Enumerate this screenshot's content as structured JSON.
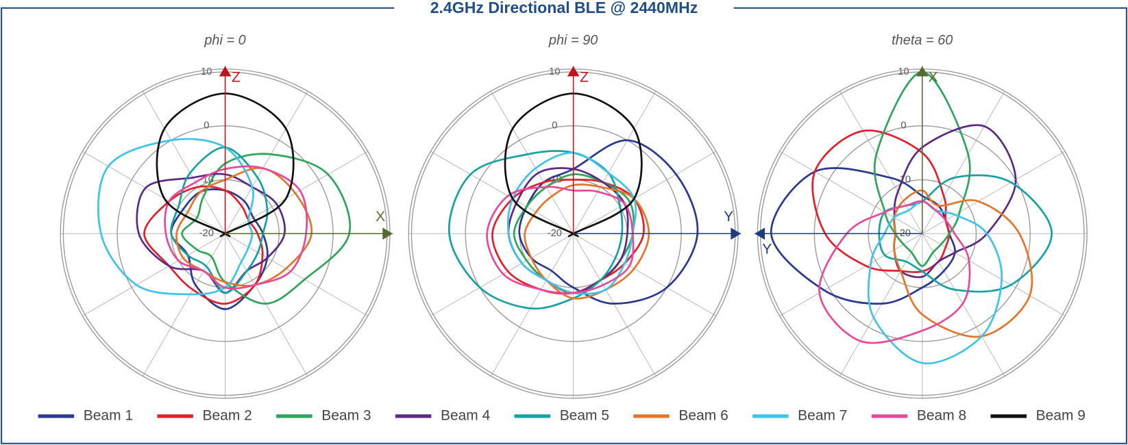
{
  "title": "2.4GHz Directional BLE @ 2440MHz",
  "chart_data": [
    {
      "type": "polar",
      "subtitle": "phi = 0",
      "theta": [
        0,
        30,
        60,
        90,
        120,
        150,
        180,
        210,
        240,
        270,
        300,
        330
      ],
      "rlim": [
        -20,
        10
      ],
      "rticks": [
        -20,
        -10,
        0,
        10
      ],
      "axes": [
        {
          "label": "Z",
          "angle": 0,
          "color": "#c0141c"
        },
        {
          "label": "X",
          "angle": 90,
          "color": "#556b2f"
        }
      ],
      "series": [
        {
          "name": "Beam 1",
          "color": "#2b3990",
          "values": [
            -12,
            -13,
            -14,
            -13,
            -11,
            -9,
            -6,
            -9,
            -12,
            -10,
            -11,
            -11
          ]
        },
        {
          "name": "Beam 2",
          "color": "#e3202a",
          "values": [
            -12,
            -14,
            -15,
            -14,
            -12,
            -9,
            -7,
            -8,
            -8,
            -5,
            -8,
            -10
          ]
        },
        {
          "name": "Beam 3",
          "color": "#2ea55a",
          "values": [
            -7,
            -3,
            2,
            3,
            -3,
            -5,
            -11,
            -15,
            -14,
            -12,
            -14,
            -12
          ]
        },
        {
          "name": "Beam 4",
          "color": "#5c2a84",
          "values": [
            -9,
            -10,
            -9,
            -9,
            -11,
            -12,
            -9,
            -12,
            -8,
            -4,
            -3,
            -8
          ]
        },
        {
          "name": "Beam 5",
          "color": "#16a2a2",
          "values": [
            -4,
            -8,
            -11,
            -13,
            -13,
            -12,
            -9,
            -13,
            -12,
            -10,
            -10,
            -7
          ]
        },
        {
          "name": "Beam 6",
          "color": "#e4752a",
          "values": [
            -10,
            -6,
            -5,
            -4,
            -7,
            -9,
            -11,
            -12,
            -11,
            -11,
            -12,
            -11
          ]
        },
        {
          "name": "Beam 7",
          "color": "#3ec4ea",
          "values": [
            -4,
            -10,
            -15,
            -15,
            -15,
            -14,
            -10,
            -7,
            -1,
            3,
            5,
            0
          ]
        },
        {
          "name": "Beam 8",
          "color": "#e64b9a",
          "values": [
            -8,
            -6,
            -4,
            -5,
            -6,
            -9,
            -10,
            -12,
            -10,
            -9,
            -8,
            -9
          ]
        },
        {
          "name": "Beam 9",
          "color": "#111111",
          "values": [
            6,
            2.5,
            -7,
            -20,
            -20,
            -20,
            -20,
            -20,
            -20,
            -20,
            -7,
            2.5
          ]
        }
      ]
    },
    {
      "type": "polar",
      "subtitle": "phi = 90",
      "theta": [
        0,
        30,
        60,
        90,
        120,
        150,
        180,
        210,
        240,
        270,
        300,
        330
      ],
      "rlim": [
        -20,
        10
      ],
      "rticks": [
        -20,
        -10,
        0,
        10
      ],
      "axes": [
        {
          "label": "Z",
          "angle": 0,
          "color": "#c0141c"
        },
        {
          "label": "Y",
          "angle": 90,
          "color": "#1f3c7a"
        }
      ],
      "series": [
        {
          "name": "Beam 1",
          "color": "#2b3990",
          "values": [
            -8,
            0,
            2,
            3,
            0,
            -5,
            -10,
            -12,
            -11,
            -10,
            -10,
            -9
          ]
        },
        {
          "name": "Beam 2",
          "color": "#e3202a",
          "values": [
            -10,
            -9,
            -7,
            -7,
            -9,
            -10,
            -9,
            -8,
            -6,
            -5,
            -7,
            -9
          ]
        },
        {
          "name": "Beam 3",
          "color": "#2ea55a",
          "values": [
            -9,
            -9,
            -8,
            -9,
            -10,
            -10,
            -9,
            -10,
            -10,
            -9,
            -10,
            -10
          ]
        },
        {
          "name": "Beam 4",
          "color": "#5c2a84",
          "values": [
            -8,
            -9,
            -9,
            -10,
            -10,
            -10,
            -9,
            -10,
            -9,
            -8,
            -8,
            -7
          ]
        },
        {
          "name": "Beam 5",
          "color": "#16a2a2",
          "values": [
            -5,
            -7,
            -10,
            -11,
            -11,
            -10,
            -8,
            -4,
            0,
            3,
            2,
            -3
          ]
        },
        {
          "name": "Beam 6",
          "color": "#e4752a",
          "values": [
            -11,
            -10,
            -7,
            -6,
            -7,
            -8,
            -8,
            -10,
            -11,
            -11,
            -12,
            -12
          ]
        },
        {
          "name": "Beam 7",
          "color": "#3ec4ea",
          "values": [
            -5,
            -7,
            -7,
            -9,
            -9,
            -8,
            -9,
            -10,
            -9,
            -8,
            -7,
            -6
          ]
        },
        {
          "name": "Beam 8",
          "color": "#e64b9a",
          "values": [
            -12,
            -11,
            -9,
            -9,
            -8,
            -9,
            -9,
            -8,
            -5,
            -4,
            -6,
            -10
          ]
        },
        {
          "name": "Beam 9",
          "color": "#111111",
          "values": [
            6,
            2.5,
            -7,
            -20,
            -20,
            -20,
            -20,
            -20,
            -20,
            -20,
            -7,
            2.5
          ]
        }
      ]
    },
    {
      "type": "polar",
      "subtitle": "theta = 60",
      "theta": [
        0,
        30,
        60,
        90,
        120,
        150,
        180,
        210,
        240,
        270,
        300,
        330
      ],
      "rlim": [
        -20,
        10
      ],
      "rticks": [
        -20,
        -10,
        0,
        10
      ],
      "axes": [
        {
          "label": "X",
          "angle": 0,
          "color": "#556b2f"
        },
        {
          "label": "Y",
          "angle": 270,
          "color": "#1f3c7a"
        }
      ],
      "series": [
        {
          "name": "Beam 1",
          "color": "#2b3990",
          "values": [
            -13,
            -14,
            -15,
            -15,
            -13,
            -12,
            -10,
            -5,
            1,
            8,
            3,
            -8
          ]
        },
        {
          "name": "Beam 2",
          "color": "#e3202a",
          "values": [
            -5,
            -12,
            -15,
            -15,
            -15,
            -14,
            -13,
            -12,
            -8,
            -2,
            3,
            2
          ]
        },
        {
          "name": "Beam 3",
          "color": "#2ea55a",
          "values": [
            10,
            -3,
            -12,
            -15,
            -16,
            -16,
            -14,
            -16,
            -16,
            -15,
            -12,
            -3
          ]
        },
        {
          "name": "Beam 4",
          "color": "#5c2a84",
          "values": [
            -4,
            3,
            0,
            -8,
            -13,
            -14,
            -12,
            -12,
            -14,
            -15,
            -14,
            -11
          ]
        },
        {
          "name": "Beam 5",
          "color": "#16a2a2",
          "values": [
            -14,
            -8,
            -1,
            4,
            -1,
            -8,
            -13,
            -14,
            -12,
            -12,
            -12,
            -14
          ]
        },
        {
          "name": "Beam 6",
          "color": "#e4752a",
          "values": [
            -12,
            -14,
            -8,
            -2,
            3,
            2,
            -5,
            -12,
            -14,
            -15,
            -14,
            -13
          ]
        },
        {
          "name": "Beam 7",
          "color": "#3ec4ea",
          "values": [
            -14,
            -15,
            -13,
            -8,
            -3,
            2,
            4,
            -2,
            -9,
            -13,
            -14,
            -15
          ]
        },
        {
          "name": "Beam 8",
          "color": "#e64b9a",
          "values": [
            -14,
            -15,
            -15,
            -14,
            -10,
            -5,
            -2,
            3,
            2,
            -6,
            -12,
            -14
          ]
        }
      ]
    }
  ]
}
